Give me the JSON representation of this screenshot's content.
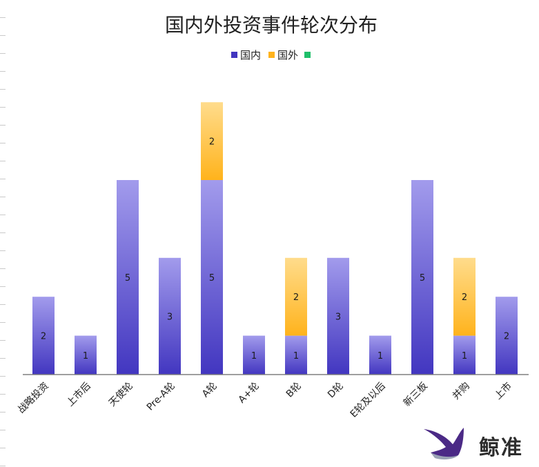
{
  "colors": {
    "domestic_top": "#a29bec",
    "domestic_bottom": "#4236c0",
    "foreign_top": "#ffdc8c",
    "foreign_bottom": "#ffb31c",
    "other": "#1fbf6a",
    "axis": "#7f7f7f",
    "text": "#222222"
  },
  "brand": {
    "name": "鲸准"
  },
  "chart_data": {
    "type": "bar",
    "stacked": true,
    "title": "国内外投资事件轮次分布",
    "xlabel": "",
    "ylabel": "",
    "ylim": [
      0,
      7
    ],
    "grid": false,
    "legend_position": "top",
    "categories": [
      "战略投资",
      "上市后",
      "天使轮",
      "Pre-A轮",
      "A轮",
      "A+轮",
      "B轮",
      "D轮",
      "E轮及以后",
      "新三板",
      "并购",
      "上市"
    ],
    "series": [
      {
        "name": "国内",
        "values": [
          2,
          1,
          5,
          3,
          5,
          1,
          1,
          3,
          1,
          5,
          1,
          2
        ]
      },
      {
        "name": "国外",
        "values": [
          0,
          0,
          0,
          0,
          2,
          0,
          2,
          0,
          0,
          0,
          2,
          0
        ]
      },
      {
        "name": "",
        "values": [
          0,
          0,
          0,
          0,
          0,
          0,
          0,
          0,
          0,
          0,
          0,
          0
        ]
      }
    ]
  }
}
